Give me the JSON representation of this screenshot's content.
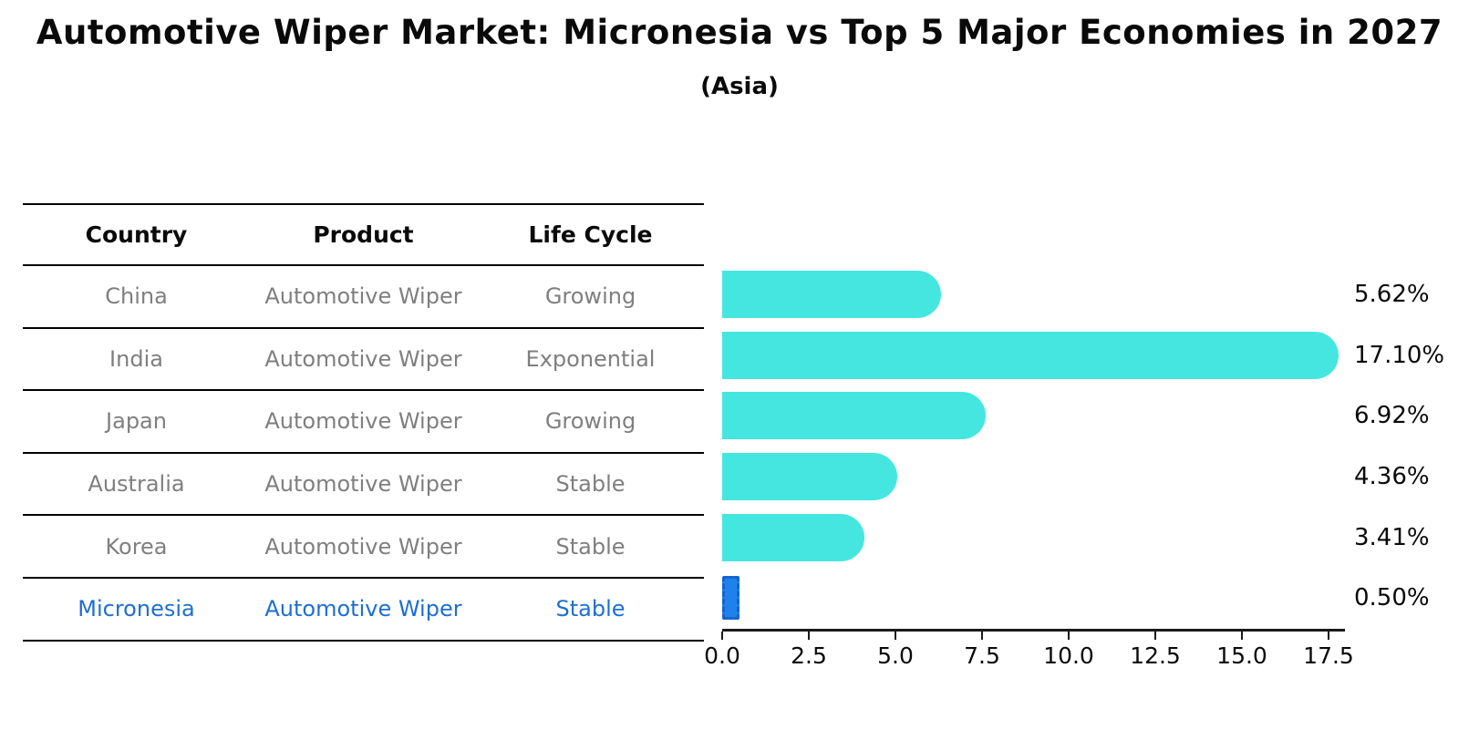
{
  "title": "Automotive Wiper Market: Micronesia vs Top 5 Major Economies in 2027",
  "subtitle": "(Asia)",
  "table": {
    "headers": [
      "Country",
      "Product",
      "Life Cycle"
    ],
    "rows": [
      {
        "country": "China",
        "product": "Automotive Wiper",
        "life_cycle": "Growing",
        "highlight": false
      },
      {
        "country": "India",
        "product": "Automotive Wiper",
        "life_cycle": "Exponential",
        "highlight": false
      },
      {
        "country": "Japan",
        "product": "Automotive Wiper",
        "life_cycle": "Growing",
        "highlight": false
      },
      {
        "country": "Australia",
        "product": "Automotive Wiper",
        "life_cycle": "Stable",
        "highlight": false
      },
      {
        "country": "Korea",
        "product": "Automotive Wiper",
        "life_cycle": "Stable",
        "highlight": false
      },
      {
        "country": "Micronesia",
        "product": "Automotive Wiper",
        "life_cycle": "Stable",
        "highlight": true
      }
    ]
  },
  "chart_data": {
    "type": "bar",
    "orientation": "horizontal",
    "title": "Automotive Wiper Market: Micronesia vs Top 5 Major Economies in 2027",
    "subtitle": "(Asia)",
    "categories": [
      "China",
      "India",
      "Japan",
      "Australia",
      "Korea",
      "Micronesia"
    ],
    "values": [
      5.62,
      17.1,
      6.92,
      4.36,
      3.41,
      0.5
    ],
    "value_labels": [
      "5.62%",
      "17.10%",
      "6.92%",
      "4.36%",
      "3.41%",
      "0.50%"
    ],
    "highlight_index": 5,
    "xlim": [
      0,
      18
    ],
    "xticks": [
      0.0,
      2.5,
      5.0,
      7.5,
      10.0,
      12.5,
      15.0,
      17.5
    ],
    "xtick_labels": [
      "0.0",
      "2.5",
      "5.0",
      "7.5",
      "10.0",
      "12.5",
      "15.0",
      "17.5"
    ],
    "grid": false,
    "legend": false,
    "bar_color": "#45E6E0",
    "highlight_bar_color": "#1E82EA",
    "highlight_edge_color": "#1563CF",
    "highlight_text_color": "#1E6FD2"
  }
}
